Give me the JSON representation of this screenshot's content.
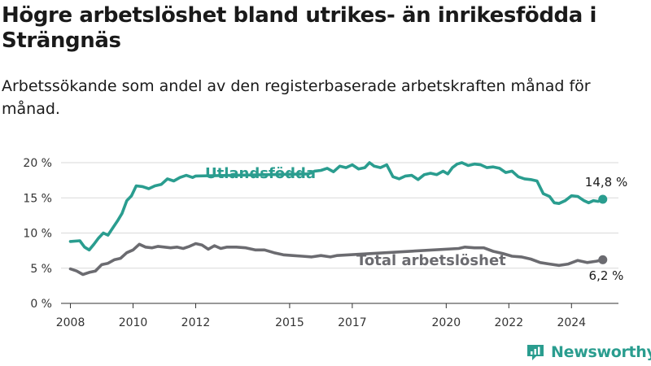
{
  "title": "Högre arbetslöshet bland utrikes- än inrikesfödda i Strängnäs",
  "subtitle": "Arbetssökande som andel av den registerbaserade arbetskraften månad för månad.",
  "brand": "Newsworthy",
  "colors": {
    "utlandsfodda": "#2a9d8f",
    "total": "#6b6b70",
    "axis": "#333333",
    "grid": "#d9d9d9"
  },
  "chart_data": {
    "type": "line",
    "x_unit": "year",
    "ylabel": "",
    "ylim": [
      0,
      20
    ],
    "xlim": [
      2007.7,
      2025.5
    ],
    "y_ticks": [
      {
        "value": 0,
        "label": "0 %"
      },
      {
        "value": 5,
        "label": "5 %"
      },
      {
        "value": 10,
        "label": "10 %"
      },
      {
        "value": 15,
        "label": "15 %"
      },
      {
        "value": 20,
        "label": "20 %"
      }
    ],
    "x_ticks": [
      {
        "value": 2008,
        "label": "2008"
      },
      {
        "value": 2010,
        "label": "2010"
      },
      {
        "value": 2012,
        "label": "2012"
      },
      {
        "value": 2015,
        "label": "2015"
      },
      {
        "value": 2017,
        "label": "2017"
      },
      {
        "value": 2020,
        "label": "2020"
      },
      {
        "value": 2022,
        "label": "2022"
      },
      {
        "value": 2024,
        "label": "2024"
      }
    ],
    "grid": "horizontal",
    "series": [
      {
        "name": "Utlandsfödda",
        "end_label": "14,8 %",
        "points": [
          [
            2008.0,
            8.8
          ],
          [
            2008.3,
            8.9
          ],
          [
            2008.45,
            8.0
          ],
          [
            2008.6,
            7.6
          ],
          [
            2008.75,
            8.4
          ],
          [
            2008.9,
            9.3
          ],
          [
            2009.05,
            10.0
          ],
          [
            2009.2,
            9.7
          ],
          [
            2009.35,
            10.7
          ],
          [
            2009.5,
            11.7
          ],
          [
            2009.65,
            12.8
          ],
          [
            2009.8,
            14.6
          ],
          [
            2009.95,
            15.3
          ],
          [
            2010.1,
            16.7
          ],
          [
            2010.3,
            16.6
          ],
          [
            2010.5,
            16.3
          ],
          [
            2010.7,
            16.7
          ],
          [
            2010.9,
            16.9
          ],
          [
            2011.1,
            17.7
          ],
          [
            2011.3,
            17.4
          ],
          [
            2011.5,
            17.9
          ],
          [
            2011.7,
            18.2
          ],
          [
            2011.9,
            17.9
          ],
          [
            2012.0,
            18.1
          ],
          [
            2015.6,
            18.4
          ],
          [
            2015.8,
            18.8
          ],
          [
            2016.0,
            18.9
          ],
          [
            2016.2,
            19.2
          ],
          [
            2016.4,
            18.7
          ],
          [
            2016.6,
            19.5
          ],
          [
            2016.8,
            19.3
          ],
          [
            2017.0,
            19.7
          ],
          [
            2017.2,
            19.1
          ],
          [
            2017.4,
            19.3
          ],
          [
            2017.55,
            20.0
          ],
          [
            2017.7,
            19.5
          ],
          [
            2017.9,
            19.3
          ],
          [
            2018.1,
            19.7
          ],
          [
            2018.3,
            18.0
          ],
          [
            2018.5,
            17.7
          ],
          [
            2018.7,
            18.1
          ],
          [
            2018.9,
            18.2
          ],
          [
            2019.1,
            17.6
          ],
          [
            2019.3,
            18.3
          ],
          [
            2019.5,
            18.5
          ],
          [
            2019.7,
            18.3
          ],
          [
            2019.9,
            18.8
          ],
          [
            2020.05,
            18.4
          ],
          [
            2020.2,
            19.3
          ],
          [
            2020.35,
            19.8
          ],
          [
            2020.5,
            20.0
          ],
          [
            2020.7,
            19.6
          ],
          [
            2020.9,
            19.8
          ],
          [
            2021.1,
            19.7
          ],
          [
            2021.3,
            19.3
          ],
          [
            2021.5,
            19.4
          ],
          [
            2021.7,
            19.2
          ],
          [
            2021.9,
            18.6
          ],
          [
            2022.1,
            18.8
          ],
          [
            2022.3,
            18.0
          ],
          [
            2022.5,
            17.7
          ],
          [
            2022.7,
            17.6
          ],
          [
            2022.9,
            17.4
          ],
          [
            2023.1,
            15.6
          ],
          [
            2023.3,
            15.2
          ],
          [
            2023.45,
            14.3
          ],
          [
            2023.6,
            14.2
          ],
          [
            2023.8,
            14.6
          ],
          [
            2024.0,
            15.3
          ],
          [
            2024.2,
            15.2
          ],
          [
            2024.4,
            14.6
          ],
          [
            2024.55,
            14.3
          ],
          [
            2024.7,
            14.6
          ],
          [
            2024.85,
            14.5
          ],
          [
            2025.0,
            14.8
          ]
        ]
      },
      {
        "name": "Total arbetslöshet",
        "end_label": "6,2 %",
        "points": [
          [
            2008.0,
            4.9
          ],
          [
            2008.2,
            4.6
          ],
          [
            2008.4,
            4.1
          ],
          [
            2008.6,
            4.4
          ],
          [
            2008.8,
            4.6
          ],
          [
            2009.0,
            5.5
          ],
          [
            2009.2,
            5.7
          ],
          [
            2009.4,
            6.2
          ],
          [
            2009.6,
            6.4
          ],
          [
            2009.8,
            7.2
          ],
          [
            2010.0,
            7.6
          ],
          [
            2010.2,
            8.4
          ],
          [
            2010.4,
            8.0
          ],
          [
            2010.6,
            7.9
          ],
          [
            2010.8,
            8.1
          ],
          [
            2011.0,
            8.0
          ],
          [
            2011.2,
            7.9
          ],
          [
            2011.4,
            8.0
          ],
          [
            2011.6,
            7.8
          ],
          [
            2011.8,
            8.1
          ],
          [
            2012.0,
            8.5
          ],
          [
            2012.2,
            8.3
          ],
          [
            2012.4,
            7.7
          ],
          [
            2012.6,
            8.2
          ],
          [
            2012.8,
            7.8
          ],
          [
            2013.0,
            8.0
          ],
          [
            2013.3,
            8.0
          ],
          [
            2013.6,
            7.9
          ],
          [
            2013.9,
            7.6
          ],
          [
            2014.2,
            7.6
          ],
          [
            2014.5,
            7.2
          ],
          [
            2014.8,
            6.9
          ],
          [
            2015.1,
            6.8
          ],
          [
            2015.4,
            6.7
          ],
          [
            2015.7,
            6.6
          ],
          [
            2016.0,
            6.8
          ],
          [
            2016.3,
            6.6
          ],
          [
            2016.5,
            6.8
          ],
          [
            2020.4,
            7.8
          ],
          [
            2020.6,
            8.0
          ],
          [
            2020.9,
            7.9
          ],
          [
            2021.2,
            7.9
          ],
          [
            2021.5,
            7.4
          ],
          [
            2021.8,
            7.1
          ],
          [
            2022.1,
            6.7
          ],
          [
            2022.4,
            6.6
          ],
          [
            2022.7,
            6.3
          ],
          [
            2023.0,
            5.8
          ],
          [
            2023.3,
            5.6
          ],
          [
            2023.6,
            5.4
          ],
          [
            2023.9,
            5.6
          ],
          [
            2024.2,
            6.1
          ],
          [
            2024.5,
            5.8
          ],
          [
            2024.8,
            6.0
          ],
          [
            2025.0,
            6.2
          ]
        ]
      }
    ]
  }
}
